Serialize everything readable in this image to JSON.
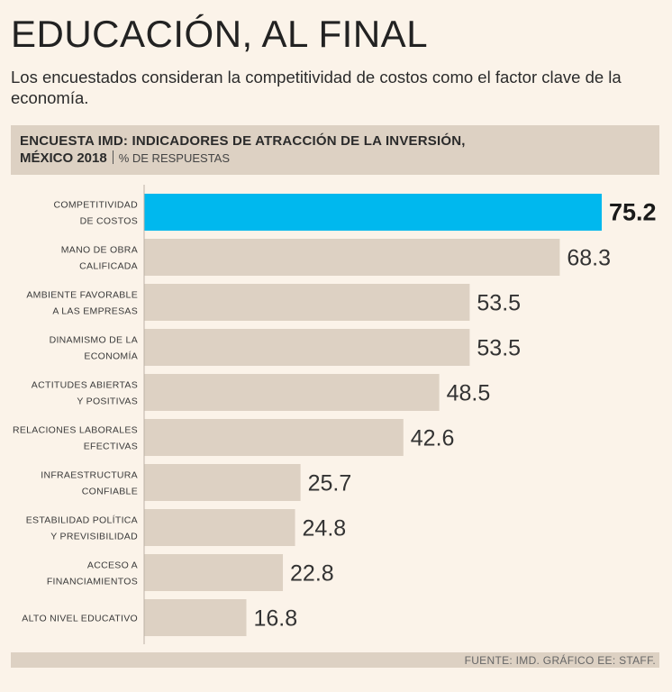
{
  "title": "EDUCACIÓN, AL FINAL",
  "subtitle": "Los encuestados consideran la competitividad de costos como el factor clave de la economía.",
  "header": {
    "line1": "ENCUESTA IMD: INDICADORES DE ATRACCIÓN DE LA INVERSIÓN,",
    "line2_bold": "MÉXICO 2018",
    "line2_unit": "% DE RESPUESTAS"
  },
  "footer": "FUENTE: IMD.  GRÁFICO EE: STAFF.",
  "colors": {
    "highlight": "#00b8ee",
    "bar": "#ddd1c3",
    "axis": "#bcb2a6",
    "text": "#2b2b2b"
  },
  "chart_data": {
    "type": "bar",
    "orientation": "horizontal",
    "title": "ENCUESTA IMD: INDICADORES DE ATRACCIÓN DE LA INVERSIÓN, MÉXICO 2018",
    "xlabel": "% DE RESPUESTAS",
    "ylabel": "",
    "xlim": [
      0,
      75.2
    ],
    "grid": false,
    "categories": [
      [
        "COMPETITIVIDAD",
        "DE COSTOS"
      ],
      [
        "MANO DE OBRA",
        "CALIFICADA"
      ],
      [
        "AMBIENTE FAVORABLE",
        "A LAS EMPRESAS"
      ],
      [
        "DINAMISMO DE LA",
        "ECONOMÍA"
      ],
      [
        "ACTITUDES ABIERTAS",
        "Y POSITIVAS"
      ],
      [
        "RELACIONES LABORALES",
        "EFECTIVAS"
      ],
      [
        "INFRAESTRUCTURA",
        "CONFIABLE"
      ],
      [
        "ESTABILIDAD POLÍTICA",
        "Y PREVISIBILIDAD"
      ],
      [
        "ACCESO A",
        "FINANCIAMIENTOS"
      ],
      [
        "ALTO NIVEL EDUCATIVO"
      ]
    ],
    "values": [
      75.2,
      68.3,
      53.5,
      53.5,
      48.5,
      42.6,
      25.7,
      24.8,
      22.8,
      16.8
    ],
    "value_labels": [
      "75.2",
      "68.3",
      "53.5",
      "53.5",
      "48.5",
      "42.6",
      "25.7",
      "24.8",
      "22.8",
      "16.8"
    ],
    "highlight_index": 0
  }
}
